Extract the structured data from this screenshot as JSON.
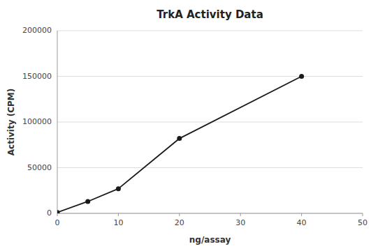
{
  "chart_data": {
    "type": "line",
    "title": "TrkA Activity Data",
    "xlabel": "ng/assay",
    "ylabel": "Activity (CPM)",
    "x": [
      0,
      5,
      10,
      20,
      40
    ],
    "values": [
      1000,
      13000,
      27000,
      82000,
      150000
    ],
    "xlim": [
      0,
      50
    ],
    "ylim": [
      0,
      200000
    ],
    "xticks": [
      0,
      10,
      20,
      30,
      40,
      50
    ],
    "yticks": [
      0,
      50000,
      100000,
      150000,
      200000
    ],
    "color": "#1a1a1a",
    "marker": "o",
    "grid": true
  }
}
